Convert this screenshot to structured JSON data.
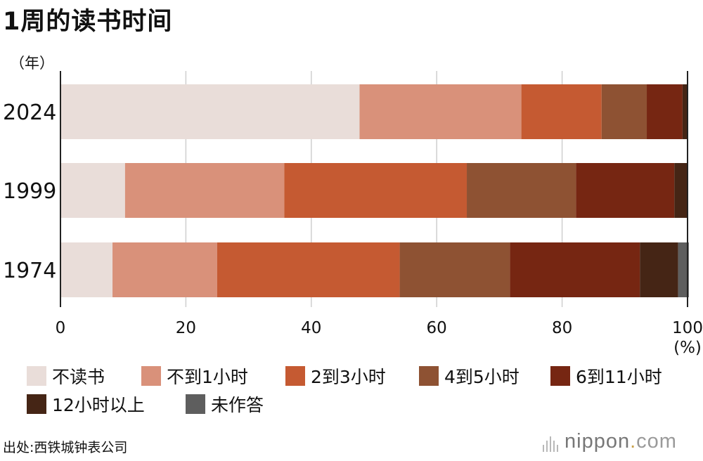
{
  "title": "1周的读书时间",
  "chart_data": {
    "type": "bar",
    "orientation": "horizontal",
    "stacked": true,
    "title": "1周的读书时间",
    "ylabel": "（年）",
    "xlabel": "(%)",
    "xlim": [
      0,
      100
    ],
    "xticks": [
      "0",
      "20",
      "40",
      "60",
      "80",
      "100"
    ],
    "grid": true,
    "legend_position": "bottom",
    "categories": [
      "2024",
      "1999",
      "1974"
    ],
    "series": [
      {
        "name": "不读书",
        "color": "#e9ddd9",
        "values": [
          47.7,
          10.3,
          8.3
        ]
      },
      {
        "name": "不到1小时",
        "color": "#d9917a",
        "values": [
          25.8,
          25.4,
          16.7
        ]
      },
      {
        "name": "2到3小时",
        "color": "#c55a32",
        "values": [
          12.8,
          29.1,
          29.1
        ]
      },
      {
        "name": "4到5小时",
        "color": "#8e5233",
        "values": [
          7.2,
          17.4,
          17.6
        ]
      },
      {
        "name": "6到11小时",
        "color": "#762612",
        "values": [
          5.7,
          15.7,
          20.7
        ]
      },
      {
        "name": "12小时以上",
        "color": "#452515",
        "values": [
          0.8,
          2.0,
          6.1
        ]
      },
      {
        "name": "未作答",
        "color": "#5e5e5e",
        "values": [
          0.0,
          0.1,
          1.7
        ]
      }
    ]
  },
  "source": "出处:西铁城钟表公司",
  "logo": {
    "name": "nippon",
    "dot": ".",
    "tld": "com"
  }
}
